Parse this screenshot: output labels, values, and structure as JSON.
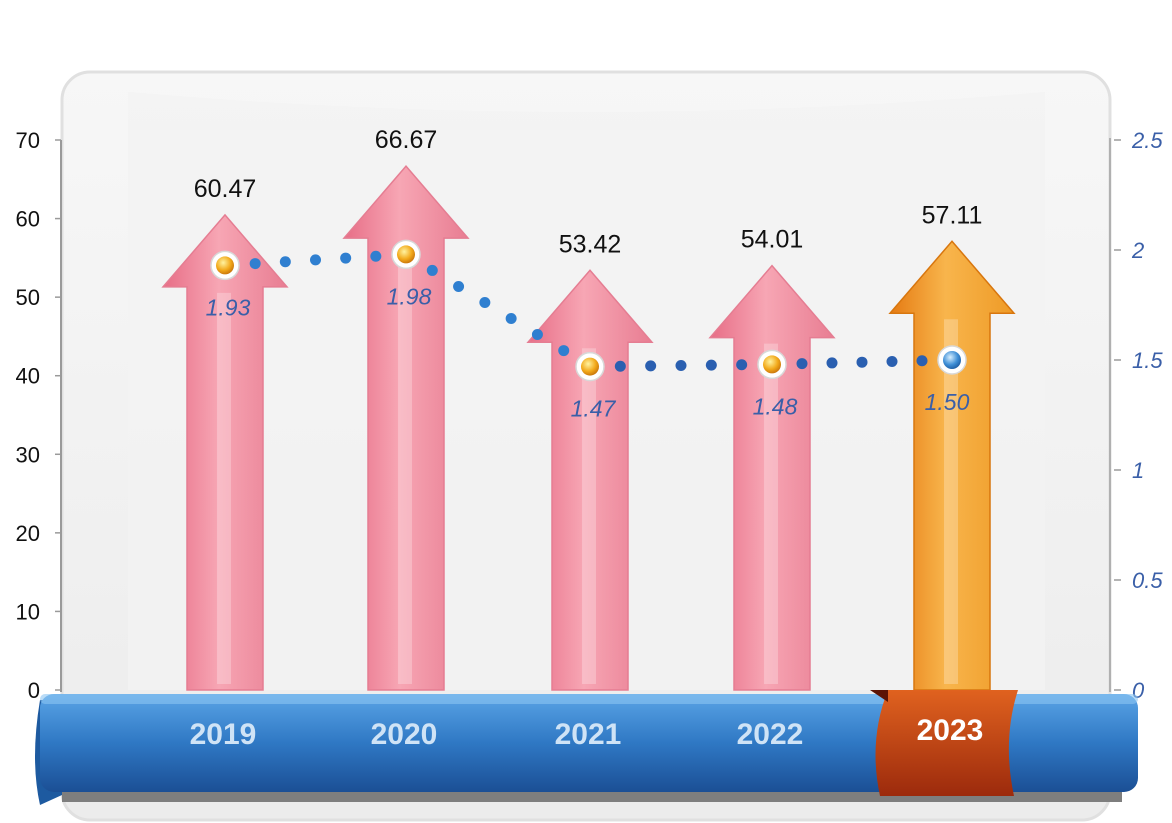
{
  "chart_data": {
    "type": "bar",
    "categories": [
      "2019",
      "2020",
      "2021",
      "2022",
      "2023"
    ],
    "series": [
      {
        "values": [
          60.47,
          66.67,
          53.42,
          54.01,
          57.11
        ],
        "axis": "left",
        "style": "arrow"
      },
      {
        "values": [
          1.93,
          1.98,
          1.47,
          1.48,
          1.5
        ],
        "axis": "right",
        "style": "dotted-line"
      }
    ],
    "highlight_category": "2023",
    "y_left": {
      "ylim": [
        0,
        70
      ],
      "ticks": [
        "0",
        "10",
        "20",
        "30",
        "40",
        "50",
        "60",
        "70"
      ]
    },
    "y_right": {
      "ylim": [
        0,
        2.5
      ],
      "ticks": [
        "0",
        "0.5",
        "1",
        "1.5",
        "2",
        "2.5"
      ]
    },
    "colors": {
      "arrow": "#f08a9c",
      "arrow_highlight": "#f0931c",
      "line": "#2f7fd0",
      "line_label": "#3a5fa8",
      "ribbon": "#2f78c4",
      "highlight_tag": "#c8461a"
    }
  }
}
